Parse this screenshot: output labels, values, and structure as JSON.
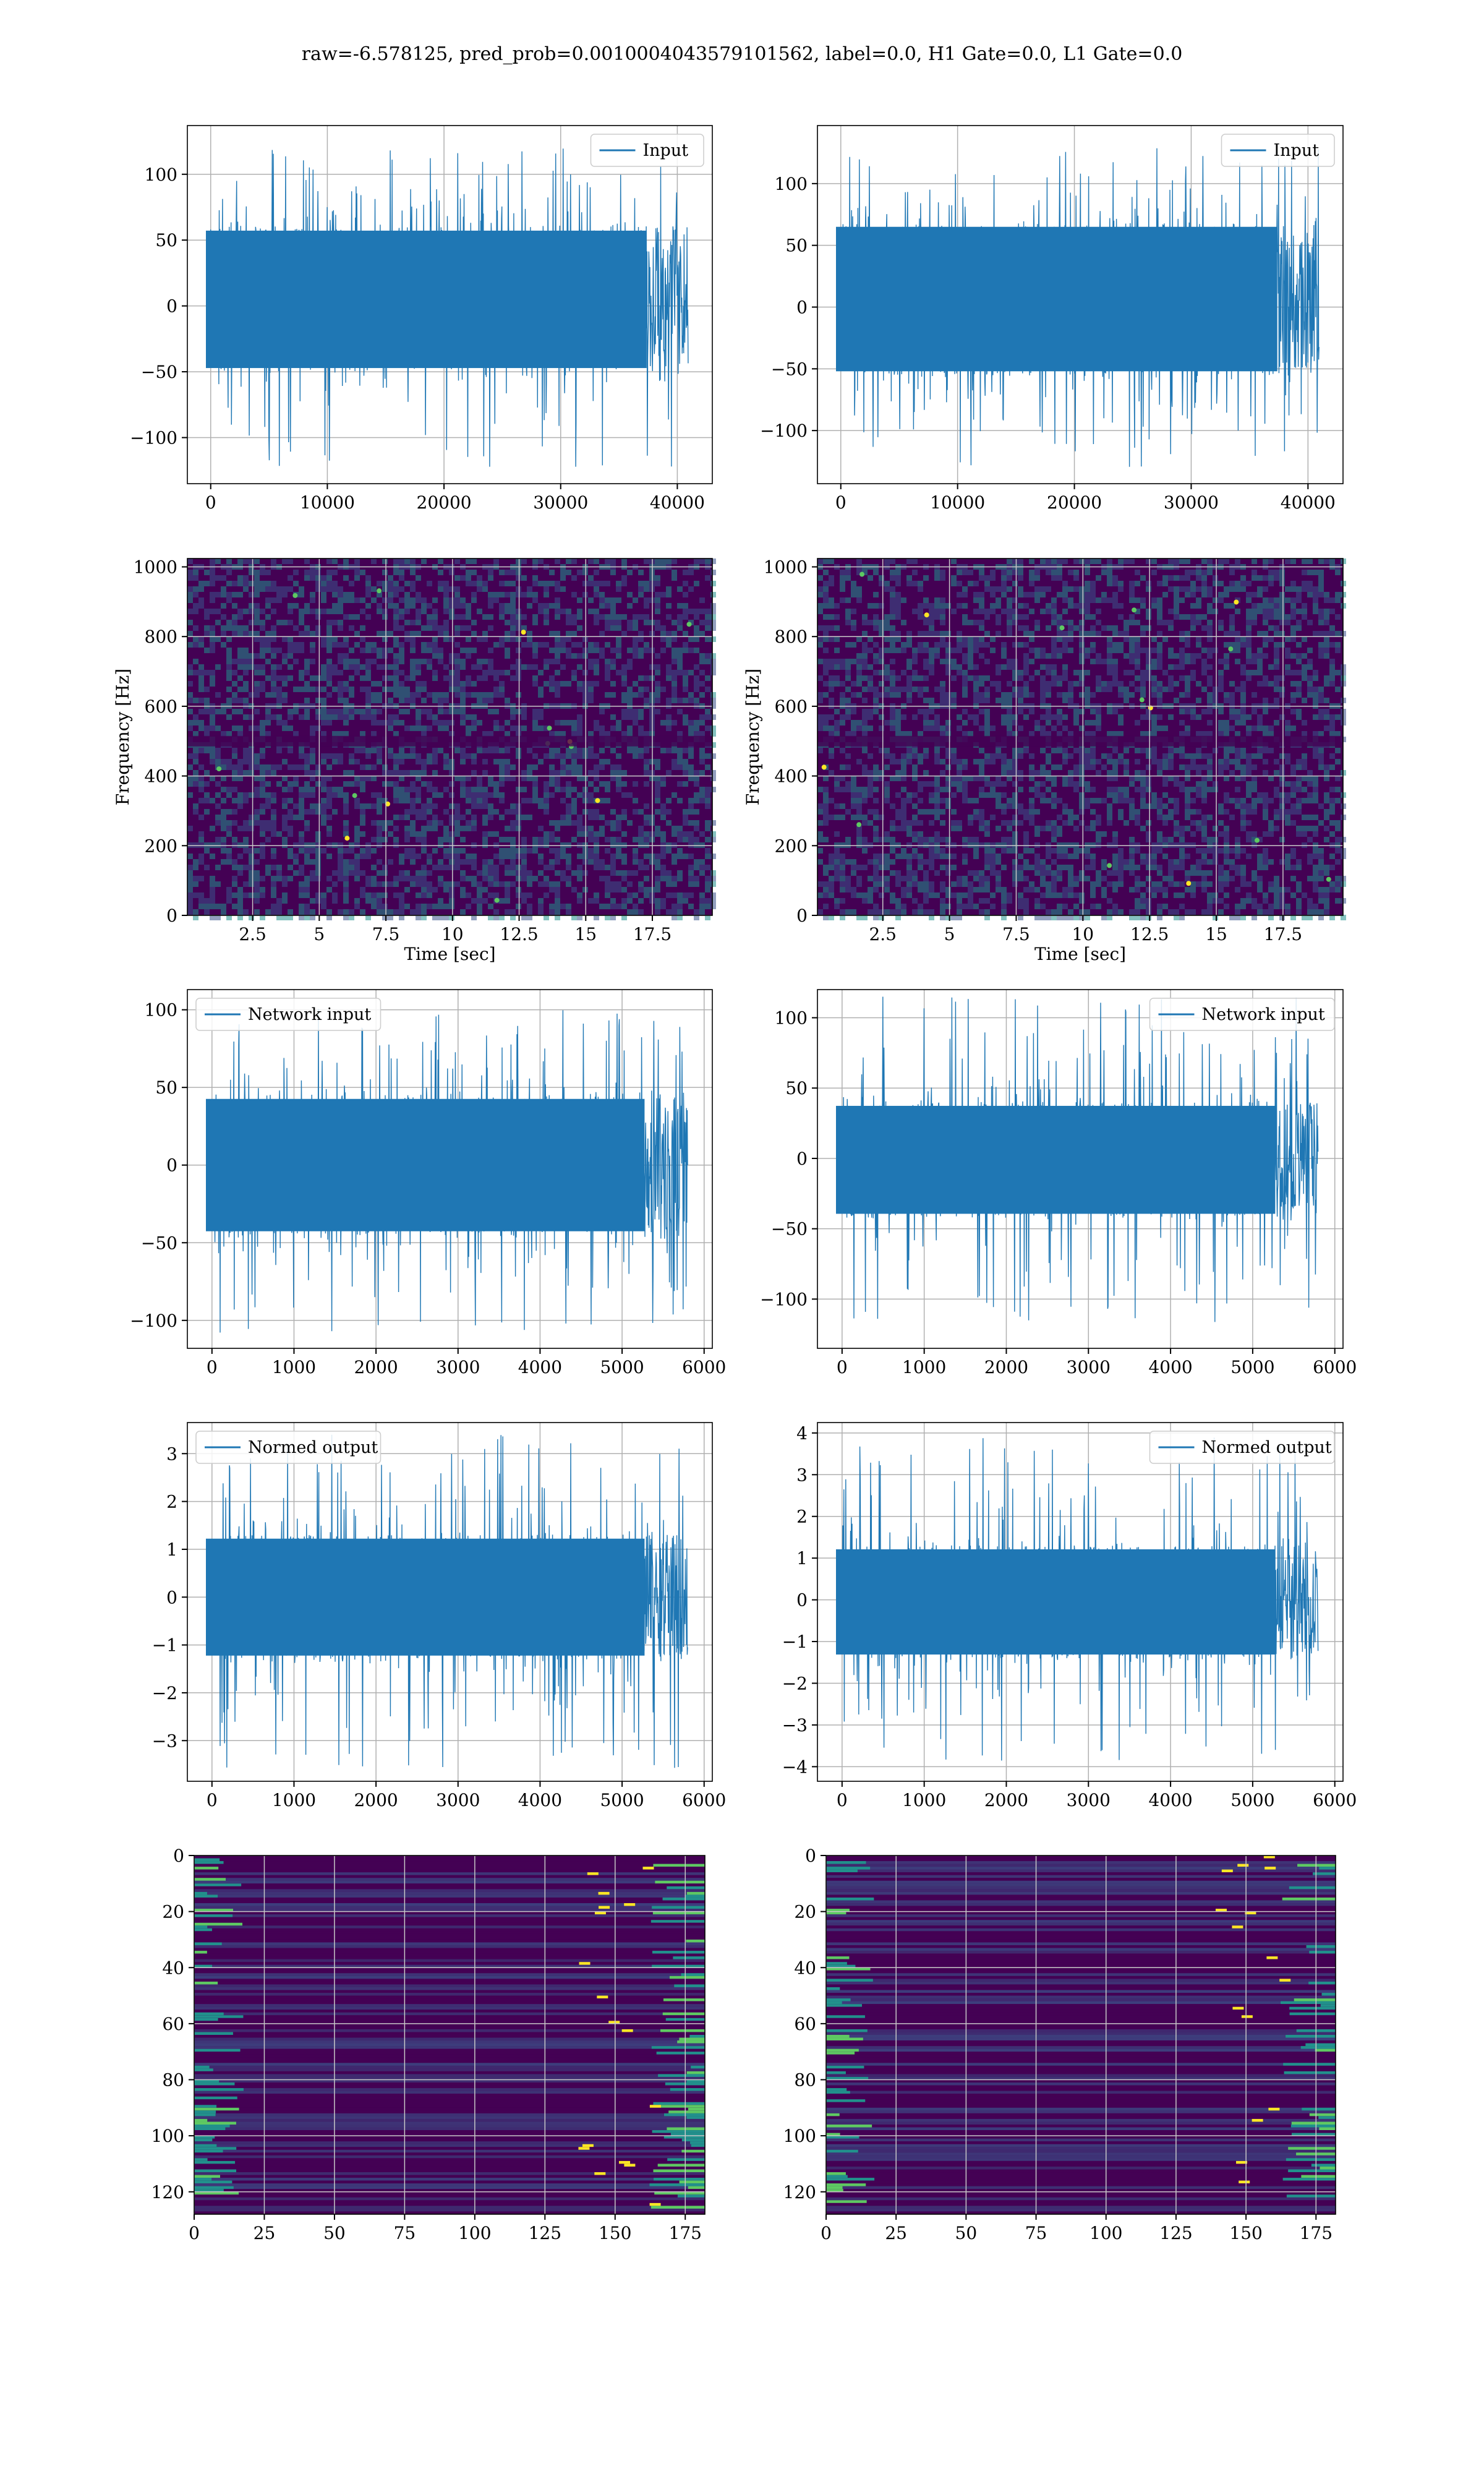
{
  "figure_title": "raw=-6.578125, pred_prob=0.0010004043579101562, label=0.0, H1 Gate=0.0, L1 Gate=0.0",
  "colors": {
    "line": "#1f77b4",
    "grid": "#b0b0b0",
    "heat_bg": "#440154",
    "heat_mid": "#3b528b",
    "heat_teal": "#21918c",
    "heat_green": "#5ec962",
    "heat_yellow": "#fde725"
  },
  "chart_data": [
    {
      "id": "input-left",
      "type": "line",
      "series": [
        {
          "name": "Input",
          "n": 40960,
          "mean": 0,
          "band": [
            -50,
            60
          ],
          "min": -125,
          "max": 120
        }
      ],
      "xlim": [
        -2000,
        43000
      ],
      "ylim": [
        -135,
        137
      ],
      "xticks": [
        0,
        10000,
        20000,
        30000,
        40000
      ],
      "yticks": [
        -100,
        -50,
        0,
        50,
        100
      ],
      "legend": "top-right",
      "grid": true,
      "xlabel": "",
      "ylabel": ""
    },
    {
      "id": "input-right",
      "type": "line",
      "series": [
        {
          "name": "Input",
          "n": 40960,
          "mean": 0,
          "band": [
            -55,
            68
          ],
          "min": -130,
          "max": 135
        }
      ],
      "xlim": [
        -2000,
        43000
      ],
      "ylim": [
        -143,
        147
      ],
      "xticks": [
        0,
        10000,
        20000,
        30000,
        40000
      ],
      "yticks": [
        -100,
        -50,
        0,
        50,
        100
      ],
      "legend": "top-right",
      "grid": true,
      "xlabel": "",
      "ylabel": ""
    },
    {
      "id": "spectrogram-left",
      "type": "heatmap",
      "xlim": [
        0.05,
        19.75
      ],
      "ylim": [
        0,
        1024
      ],
      "xticks": [
        2.5,
        5.0,
        7.5,
        10.0,
        12.5,
        15.0,
        17.5
      ],
      "yticks": [
        0,
        200,
        400,
        600,
        800,
        1000
      ],
      "xlabel": "Time [sec]",
      "ylabel": "Frequency [Hz]",
      "grid": true,
      "dark_band_hz": [
        485,
        515
      ]
    },
    {
      "id": "spectrogram-right",
      "type": "heatmap",
      "xlim": [
        0.05,
        19.75
      ],
      "ylim": [
        0,
        1024
      ],
      "xticks": [
        2.5,
        5.0,
        7.5,
        10.0,
        12.5,
        15.0,
        17.5
      ],
      "yticks": [
        0,
        200,
        400,
        600,
        800,
        1000
      ],
      "xlabel": "Time [sec]",
      "ylabel": "Frequency [Hz]",
      "grid": true,
      "dark_band_hz": [
        485,
        515
      ]
    },
    {
      "id": "network-input-left",
      "type": "line",
      "series": [
        {
          "name": "Network input",
          "n": 5800,
          "mean": 0,
          "band": [
            -45,
            45
          ],
          "min": -108,
          "max": 102
        }
      ],
      "xlim": [
        -300,
        6100
      ],
      "ylim": [
        -118,
        113
      ],
      "xticks": [
        0,
        1000,
        2000,
        3000,
        4000,
        5000,
        6000
      ],
      "yticks": [
        -100,
        -50,
        0,
        50,
        100
      ],
      "legend": "top-left",
      "grid": true,
      "xlabel": "",
      "ylabel": ""
    },
    {
      "id": "network-input-right",
      "type": "line",
      "series": [
        {
          "name": "Network input",
          "n": 5800,
          "mean": 0,
          "band": [
            -42,
            40
          ],
          "min": -120,
          "max": 115
        }
      ],
      "xlim": [
        -300,
        6100
      ],
      "ylim": [
        -135,
        120
      ],
      "xticks": [
        0,
        1000,
        2000,
        3000,
        4000,
        5000,
        6000
      ],
      "yticks": [
        -100,
        -50,
        0,
        50,
        100
      ],
      "legend": "top-right",
      "grid": true,
      "xlabel": "",
      "ylabel": ""
    },
    {
      "id": "normed-output-left",
      "type": "line",
      "series": [
        {
          "name": "Normed output",
          "n": 5800,
          "mean": 0,
          "band": [
            -1.3,
            1.3
          ],
          "min": -3.6,
          "max": 3.4
        }
      ],
      "xlim": [
        -300,
        6100
      ],
      "ylim": [
        -3.85,
        3.65
      ],
      "xticks": [
        0,
        1000,
        2000,
        3000,
        4000,
        5000,
        6000
      ],
      "yticks": [
        -3,
        -2,
        -1,
        0,
        1,
        2,
        3
      ],
      "legend": "top-left",
      "grid": true,
      "xlabel": "",
      "ylabel": ""
    },
    {
      "id": "normed-output-right",
      "type": "line",
      "series": [
        {
          "name": "Normed output",
          "n": 5800,
          "mean": 0,
          "band": [
            -1.4,
            1.3
          ],
          "min": -3.9,
          "max": 3.9
        }
      ],
      "xlim": [
        -300,
        6100
      ],
      "ylim": [
        -4.35,
        4.25
      ],
      "xticks": [
        0,
        1000,
        2000,
        3000,
        4000,
        5000,
        6000
      ],
      "yticks": [
        -4,
        -3,
        -2,
        -1,
        0,
        1,
        2,
        3,
        4
      ],
      "legend": "top-right",
      "grid": true,
      "xlabel": "",
      "ylabel": ""
    },
    {
      "id": "activation-map-left",
      "type": "heatmap",
      "xlim": [
        0,
        182
      ],
      "ylim": [
        128,
        0
      ],
      "xticks": [
        0,
        25,
        50,
        75,
        100,
        125,
        150,
        175
      ],
      "yticks": [
        0,
        20,
        40,
        60,
        80,
        100,
        120
      ],
      "grid": true,
      "xlabel": "",
      "ylabel": ""
    },
    {
      "id": "activation-map-right",
      "type": "heatmap",
      "xlim": [
        0,
        182
      ],
      "ylim": [
        128,
        0
      ],
      "xticks": [
        0,
        25,
        50,
        75,
        100,
        125,
        150,
        175
      ],
      "yticks": [
        0,
        20,
        40,
        60,
        80,
        100,
        120
      ],
      "grid": true,
      "xlabel": "",
      "ylabel": ""
    }
  ]
}
